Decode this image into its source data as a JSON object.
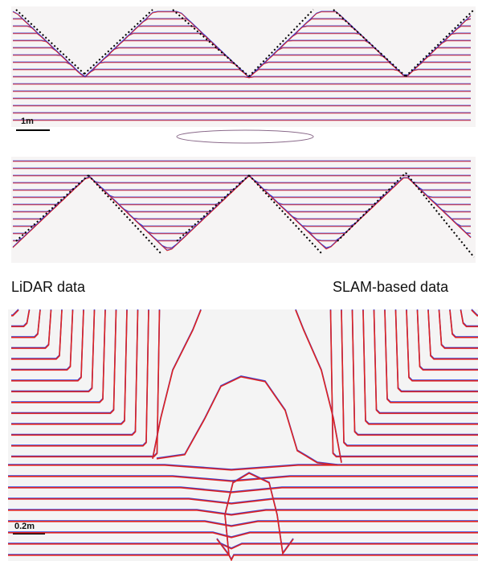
{
  "top_scale": "1m",
  "left_caption": "LiDAR data",
  "right_caption": "SLAM-based data",
  "zoom_scale": "0.2m"
}
